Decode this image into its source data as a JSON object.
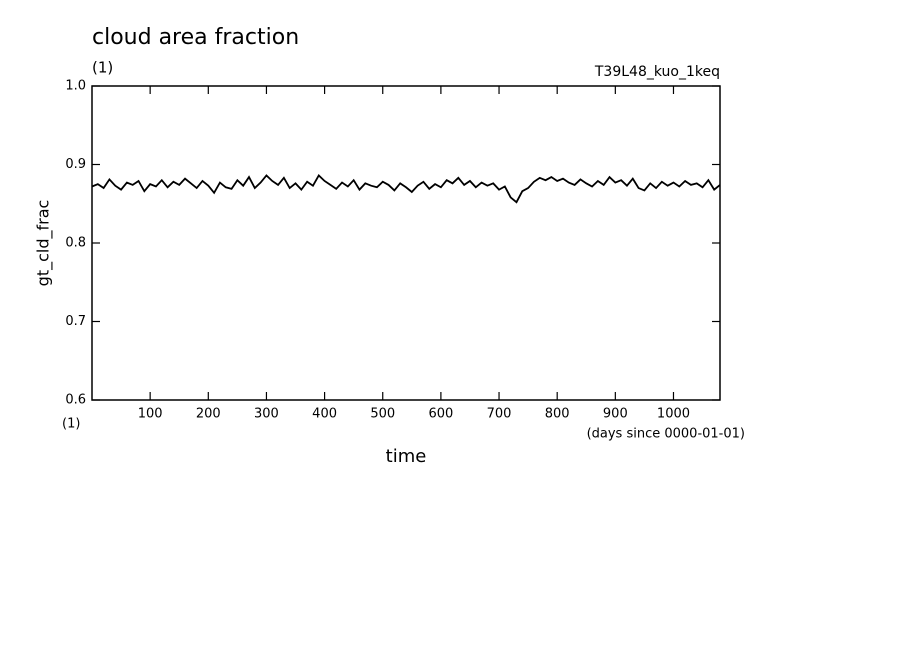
{
  "chart_data": {
    "type": "line",
    "title": "cloud area fraction",
    "subtitle": "(1)",
    "run_label": "T39L48_kuo_1keq",
    "y_label": "gt_cld_frac",
    "x_label": "time",
    "x_unit": "(1)",
    "x_note": "(days since 0000-01-01)",
    "xlim": [
      0,
      1080
    ],
    "ylim": [
      0.6,
      1
    ],
    "xticks": [
      100,
      200,
      300,
      400,
      500,
      600,
      700,
      800,
      900,
      1000
    ],
    "yticks": [
      0.6,
      0.7,
      0.8,
      0.9,
      {
        "value": 1,
        "label": "1.0"
      }
    ],
    "x": [
      0,
      10,
      20,
      30,
      40,
      50,
      60,
      70,
      80,
      90,
      100,
      110,
      120,
      130,
      140,
      150,
      160,
      170,
      180,
      190,
      200,
      210,
      220,
      230,
      240,
      250,
      260,
      270,
      280,
      290,
      300,
      310,
      320,
      330,
      340,
      350,
      360,
      370,
      380,
      390,
      400,
      410,
      420,
      430,
      440,
      450,
      460,
      470,
      480,
      490,
      500,
      510,
      520,
      530,
      540,
      550,
      560,
      570,
      580,
      590,
      600,
      610,
      620,
      630,
      640,
      650,
      660,
      670,
      680,
      690,
      700,
      710,
      720,
      730,
      740,
      750,
      760,
      770,
      780,
      790,
      800,
      810,
      820,
      830,
      840,
      850,
      860,
      870,
      880,
      890,
      900,
      910,
      920,
      930,
      940,
      950,
      960,
      970,
      980,
      990,
      1000,
      1010,
      1020,
      1030,
      1040,
      1050,
      1060,
      1070,
      1080
    ],
    "series": [
      {
        "color": "#000000",
        "values": [
          0.872,
          0.875,
          0.87,
          0.881,
          0.873,
          0.868,
          0.877,
          0.874,
          0.879,
          0.866,
          0.875,
          0.872,
          0.88,
          0.871,
          0.878,
          0.874,
          0.882,
          0.876,
          0.87,
          0.879,
          0.873,
          0.864,
          0.877,
          0.871,
          0.869,
          0.88,
          0.873,
          0.884,
          0.87,
          0.877,
          0.886,
          0.879,
          0.874,
          0.883,
          0.87,
          0.876,
          0.868,
          0.878,
          0.873,
          0.886,
          0.879,
          0.874,
          0.869,
          0.877,
          0.872,
          0.88,
          0.868,
          0.876,
          0.873,
          0.871,
          0.878,
          0.874,
          0.867,
          0.876,
          0.871,
          0.865,
          0.873,
          0.878,
          0.869,
          0.875,
          0.871,
          0.88,
          0.876,
          0.883,
          0.874,
          0.879,
          0.871,
          0.877,
          0.873,
          0.876,
          0.868,
          0.872,
          0.858,
          0.852,
          0.866,
          0.87,
          0.878,
          0.883,
          0.88,
          0.884,
          0.879,
          0.882,
          0.877,
          0.874,
          0.881,
          0.876,
          0.872,
          0.879,
          0.874,
          0.884,
          0.877,
          0.88,
          0.873,
          0.882,
          0.87,
          0.867,
          0.876,
          0.87,
          0.878,
          0.873,
          0.877,
          0.872,
          0.879,
          0.874,
          0.876,
          0.871,
          0.88,
          0.868,
          0.874
        ]
      }
    ]
  }
}
